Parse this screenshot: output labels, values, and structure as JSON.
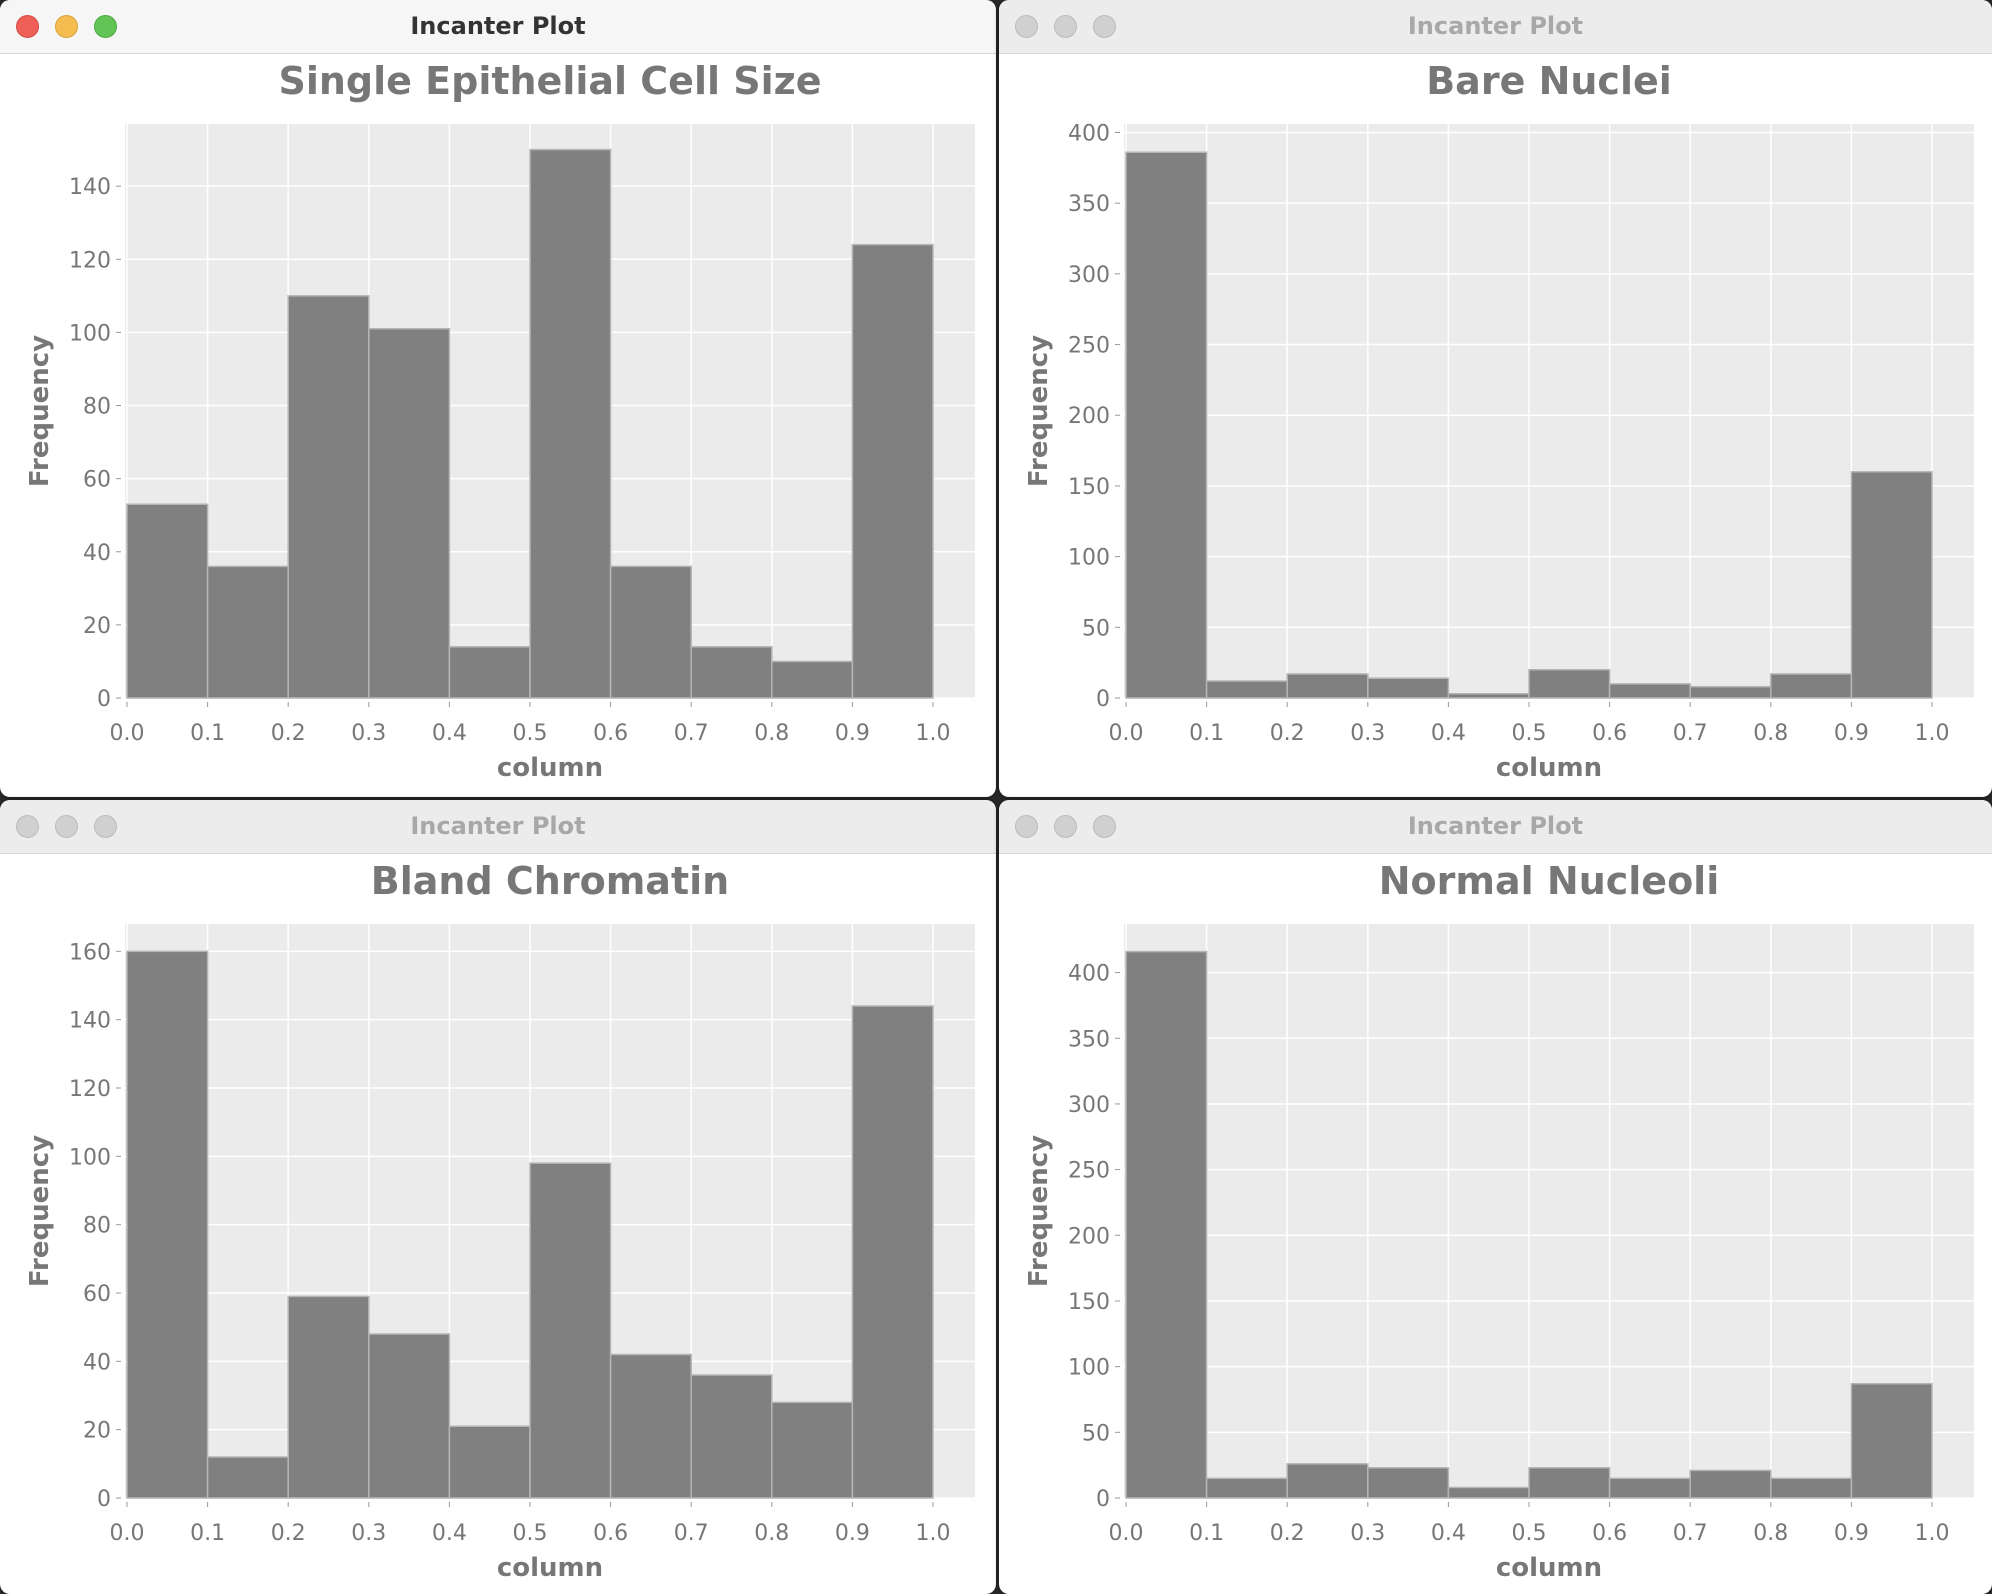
{
  "windows": [
    {
      "title": "Incanter Plot",
      "active": true
    },
    {
      "title": "Incanter Plot",
      "active": false
    },
    {
      "title": "Incanter Plot",
      "active": false
    },
    {
      "title": "Incanter Plot",
      "active": false
    }
  ],
  "chart_data": [
    {
      "type": "bar",
      "title": "Single Epithelial Cell Size",
      "xlabel": "column",
      "ylabel": "Frequency",
      "bin_edges": [
        0.0,
        0.1,
        0.2,
        0.3,
        0.4,
        0.5,
        0.6,
        0.7,
        0.8,
        0.9,
        1.0
      ],
      "values": [
        53,
        36,
        110,
        101,
        14,
        150,
        36,
        14,
        10,
        124
      ],
      "ylim": [
        0,
        157
      ],
      "yticks": [
        0,
        20,
        40,
        60,
        80,
        100,
        120,
        140
      ],
      "xticks": [
        "0.0",
        "0.1",
        "0.2",
        "0.3",
        "0.4",
        "0.5",
        "0.6",
        "0.7",
        "0.8",
        "0.9",
        "1.0"
      ],
      "grid": true,
      "bar_color": "#808080",
      "plot_bg": "#ebebeb"
    },
    {
      "type": "bar",
      "title": "Bare Nuclei",
      "xlabel": "column",
      "ylabel": "Frequency",
      "bin_edges": [
        0.0,
        0.1,
        0.2,
        0.3,
        0.4,
        0.5,
        0.6,
        0.7,
        0.8,
        0.9,
        1.0
      ],
      "values": [
        386,
        12,
        17,
        14,
        3,
        20,
        10,
        8,
        17,
        160
      ],
      "ylim": [
        0,
        406
      ],
      "yticks": [
        0,
        50,
        100,
        150,
        200,
        250,
        300,
        350,
        400
      ],
      "xticks": [
        "0.0",
        "0.1",
        "0.2",
        "0.3",
        "0.4",
        "0.5",
        "0.6",
        "0.7",
        "0.8",
        "0.9",
        "1.0"
      ],
      "grid": true,
      "bar_color": "#808080",
      "plot_bg": "#ebebeb"
    },
    {
      "type": "bar",
      "title": "Bland Chromatin",
      "xlabel": "column",
      "ylabel": "Frequency",
      "bin_edges": [
        0.0,
        0.1,
        0.2,
        0.3,
        0.4,
        0.5,
        0.6,
        0.7,
        0.8,
        0.9,
        1.0
      ],
      "values": [
        160,
        12,
        59,
        48,
        21,
        98,
        42,
        36,
        28,
        144
      ],
      "ylim": [
        0,
        168
      ],
      "yticks": [
        0,
        20,
        40,
        60,
        80,
        100,
        120,
        140,
        160
      ],
      "xticks": [
        "0.0",
        "0.1",
        "0.2",
        "0.3",
        "0.4",
        "0.5",
        "0.6",
        "0.7",
        "0.8",
        "0.9",
        "1.0"
      ],
      "grid": true,
      "bar_color": "#808080",
      "plot_bg": "#ebebeb"
    },
    {
      "type": "bar",
      "title": "Normal Nucleoli",
      "xlabel": "column",
      "ylabel": "Frequency",
      "bin_edges": [
        0.0,
        0.1,
        0.2,
        0.3,
        0.4,
        0.5,
        0.6,
        0.7,
        0.8,
        0.9,
        1.0
      ],
      "values": [
        416,
        15,
        26,
        23,
        8,
        23,
        15,
        21,
        15,
        87
      ],
      "ylim": [
        0,
        437
      ],
      "yticks": [
        0,
        50,
        100,
        150,
        200,
        250,
        300,
        350,
        400
      ],
      "xticks": [
        "0.0",
        "0.1",
        "0.2",
        "0.3",
        "0.4",
        "0.5",
        "0.6",
        "0.7",
        "0.8",
        "0.9",
        "1.0"
      ],
      "grid": true,
      "bar_color": "#808080",
      "plot_bg": "#ebebeb"
    }
  ]
}
